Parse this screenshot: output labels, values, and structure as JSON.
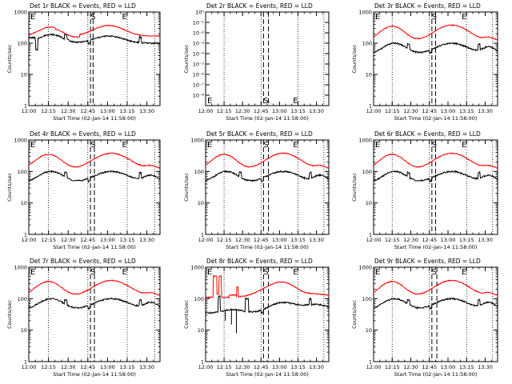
{
  "figure": {
    "background": "#ffffff",
    "colors": {
      "events": "#000000",
      "lld": "#ff0000",
      "axes": "#000000"
    }
  },
  "chart_data": [
    {
      "id": "det1",
      "type": "line",
      "title": "Det 1r BLACK = Events, RED = LLD",
      "xlabel": "Start Time (02-Jan-14 11:58:00)",
      "ylabel": "Counts/sec",
      "xscale": "time_min_since_12:00",
      "yscale": "log",
      "ylim": [
        1,
        1000
      ],
      "yticks": [
        "1",
        "10",
        "100",
        "1000"
      ],
      "xticks": [
        "12:00",
        "12:15",
        "12:30",
        "12:45",
        "13:00",
        "13:15",
        "13:30"
      ],
      "vertical_dotted_min": [
        15,
        45,
        75,
        96
      ],
      "vertical_dashed_min": [
        47,
        49
      ],
      "markers": [
        {
          "label": "E",
          "min": 0
        },
        {
          "label": "S",
          "min": 49
        },
        {
          "label": "E",
          "min": 73
        }
      ],
      "profile": "flat"
    },
    {
      "id": "det2",
      "type": "line",
      "title": "Det 2r BLACK = Events, RED = LLD",
      "xlabel": "Start Time (02-Jan-14 11:58:00)",
      "ylabel": "Counts/sec",
      "xscale": "time_min_since_12:00",
      "yscale": "log",
      "ylim": [
        1e-09,
        1
      ],
      "yticks": [
        "10⁰",
        "10⁻¹",
        "10⁻²",
        "10⁻³",
        "10⁻⁴",
        "10⁻⁵",
        "10⁻⁶",
        "10⁻⁷",
        "10⁻⁸"
      ],
      "xticks": [
        "12:00",
        "12:15",
        "12:30",
        "12:45",
        "13:00",
        "13:15",
        "13:30"
      ],
      "vertical_dotted_min": [
        15,
        45,
        75,
        96
      ],
      "vertical_dashed_min": [
        47,
        51
      ],
      "markers": [
        {
          "label": "E",
          "min": 0
        },
        {
          "label": "S",
          "min": 49
        },
        {
          "label": "E",
          "min": 73
        }
      ],
      "profile": "empty"
    },
    {
      "id": "det3",
      "type": "line",
      "title": "Det 3r BLACK = Events, RED = LLD",
      "xlabel": "Start Time (02-Jan-14 11:58:00)",
      "ylabel": "Counts/sec",
      "xscale": "time_min_since_12:00",
      "yscale": "log",
      "ylim": [
        1,
        1000
      ],
      "yticks": [
        "1",
        "10",
        "100",
        "1000"
      ],
      "xticks": [
        "12:00",
        "12:15",
        "12:30",
        "12:45",
        "13:00",
        "13:15",
        "13:30"
      ],
      "vertical_dotted_min": [
        15,
        45,
        75,
        96
      ],
      "vertical_dashed_min": [
        47,
        50
      ],
      "markers": [
        {
          "label": "E",
          "min": 0
        },
        {
          "label": "S",
          "min": 49
        },
        {
          "label": "E",
          "min": 73
        }
      ],
      "profile": "bump"
    },
    {
      "id": "det4",
      "type": "line",
      "title": "Det 4r BLACK = Events, RED = LLD",
      "xlabel": "Start Time (02-Jan-14 11:58:00)",
      "ylabel": "Counts/sec",
      "xscale": "time_min_since_12:00",
      "yscale": "log",
      "ylim": [
        1,
        1000
      ],
      "yticks": [
        "1",
        "10",
        "100",
        "1000"
      ],
      "xticks": [
        "12:00",
        "12:15",
        "12:30",
        "12:45",
        "13:00",
        "13:15",
        "13:30"
      ],
      "vertical_dotted_min": [
        15,
        45,
        75,
        96
      ],
      "vertical_dashed_min": [
        47,
        50
      ],
      "markers": [
        {
          "label": "E",
          "min": 0
        },
        {
          "label": "S",
          "min": 49
        },
        {
          "label": "E",
          "min": 73
        }
      ],
      "profile": "bump"
    },
    {
      "id": "det5",
      "type": "line",
      "title": "Det 5r BLACK = Events, RED = LLD",
      "xlabel": "Start Time (02-Jan-14 11:58:00)",
      "ylabel": "Counts/sec",
      "xscale": "time_min_since_12:00",
      "yscale": "log",
      "ylim": [
        1,
        1000
      ],
      "yticks": [
        "1",
        "10",
        "100",
        "1000"
      ],
      "xticks": [
        "12:00",
        "12:15",
        "12:30",
        "12:45",
        "13:00",
        "13:15",
        "13:30"
      ],
      "vertical_dotted_min": [
        15,
        45,
        75,
        96
      ],
      "vertical_dashed_min": [
        47,
        51
      ],
      "markers": [
        {
          "label": "E",
          "min": 0
        },
        {
          "label": "S",
          "min": 49
        },
        {
          "label": "E",
          "min": 73
        }
      ],
      "profile": "bump"
    },
    {
      "id": "det6",
      "type": "line",
      "title": "Det 6r BLACK = Events, RED = LLD",
      "xlabel": "Start Time (02-Jan-14 11:58:00)",
      "ylabel": "Counts/sec",
      "xscale": "time_min_since_12:00",
      "yscale": "log",
      "ylim": [
        1,
        1000
      ],
      "yticks": [
        "1",
        "10",
        "100",
        "1000"
      ],
      "xticks": [
        "12:00",
        "12:15",
        "12:30",
        "12:45",
        "13:00",
        "13:15",
        "13:30"
      ],
      "vertical_dotted_min": [
        15,
        45,
        75,
        96
      ],
      "vertical_dashed_min": [
        47,
        50
      ],
      "markers": [
        {
          "label": "E",
          "min": 0
        },
        {
          "label": "S",
          "min": 49
        },
        {
          "label": "E",
          "min": 73
        }
      ],
      "profile": "bump"
    },
    {
      "id": "det7",
      "type": "line",
      "title": "Det 7r BLACK = Events, RED = LLD",
      "xlabel": "Start Time (02-Jan-14 11:58:00)",
      "ylabel": "Counts/sec",
      "xscale": "time_min_since_12:00",
      "yscale": "log",
      "ylim": [
        1,
        1000
      ],
      "yticks": [
        "1",
        "10",
        "100",
        "1000"
      ],
      "xticks": [
        "12:00",
        "12:15",
        "12:30",
        "12:45",
        "13:00",
        "13:15",
        "13:30"
      ],
      "vertical_dotted_min": [
        15,
        45,
        75,
        96
      ],
      "vertical_dashed_min": [
        47,
        50
      ],
      "markers": [
        {
          "label": "E",
          "min": 0
        },
        {
          "label": "S",
          "min": 49
        },
        {
          "label": "E",
          "min": 73
        }
      ],
      "profile": "bump"
    },
    {
      "id": "det8",
      "type": "line",
      "title": "Det 8r BLACK = Events, RED = LLD",
      "xlabel": "Start Time (02-Jan-14 11:58:00)",
      "ylabel": "Counts/sec",
      "xscale": "time_min_since_12:00",
      "yscale": "log",
      "ylim": [
        1,
        1000
      ],
      "yticks": [
        "1",
        "10",
        "100",
        "1000"
      ],
      "xticks": [
        "12:00",
        "12:15",
        "12:30",
        "12:45",
        "13:00",
        "13:15",
        "13:30"
      ],
      "vertical_dotted_min": [
        15,
        45,
        75,
        96
      ],
      "vertical_dashed_min": [
        47,
        51
      ],
      "markers": [
        {
          "label": "E",
          "min": 0
        },
        {
          "label": "S",
          "min": 49
        },
        {
          "label": "E",
          "min": 73
        }
      ],
      "profile": "spiky"
    },
    {
      "id": "det9",
      "type": "line",
      "title": "Det 9r BLACK = Events, RED = LLD",
      "xlabel": "Start Time (02-Jan-14 11:58:00)",
      "ylabel": "Counts/sec",
      "xscale": "time_min_since_12:00",
      "yscale": "log",
      "ylim": [
        1,
        1000
      ],
      "yticks": [
        "1",
        "10",
        "100",
        "1000"
      ],
      "xticks": [
        "12:00",
        "12:15",
        "12:30",
        "12:45",
        "13:00",
        "13:15",
        "13:30"
      ],
      "vertical_dotted_min": [
        15,
        45,
        75,
        96
      ],
      "vertical_dashed_min": [
        47,
        51
      ],
      "markers": [
        {
          "label": "E",
          "min": 0
        },
        {
          "label": "S",
          "min": 49
        },
        {
          "label": "E",
          "min": 73
        }
      ],
      "profile": "bump"
    }
  ]
}
